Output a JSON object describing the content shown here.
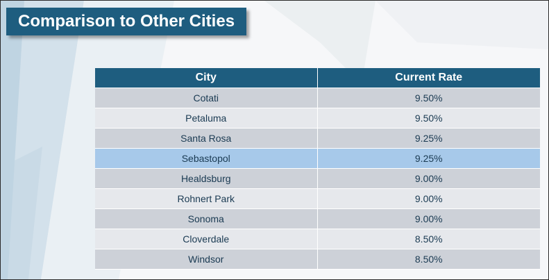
{
  "slide": {
    "title": "Comparison to Other Cities"
  },
  "table": {
    "headers": {
      "city": "City",
      "rate": "Current Rate"
    },
    "highlight_color": "#a7c9ea",
    "header_color": "#1e5d7f",
    "rows": [
      {
        "city": "Cotati",
        "rate": "9.50%"
      },
      {
        "city": "Petaluma",
        "rate": "9.50%"
      },
      {
        "city": "Santa Rosa",
        "rate": "9.25%"
      },
      {
        "city": "Sebastopol",
        "rate": "9.25%",
        "highlighted": true
      },
      {
        "city": "Healdsburg",
        "rate": "9.00%"
      },
      {
        "city": "Rohnert Park",
        "rate": "9.00%"
      },
      {
        "city": "Sonoma",
        "rate": "9.00%"
      },
      {
        "city": "Cloverdale",
        "rate": "8.50%"
      },
      {
        "city": "Windsor",
        "rate": "8.50%"
      }
    ]
  }
}
